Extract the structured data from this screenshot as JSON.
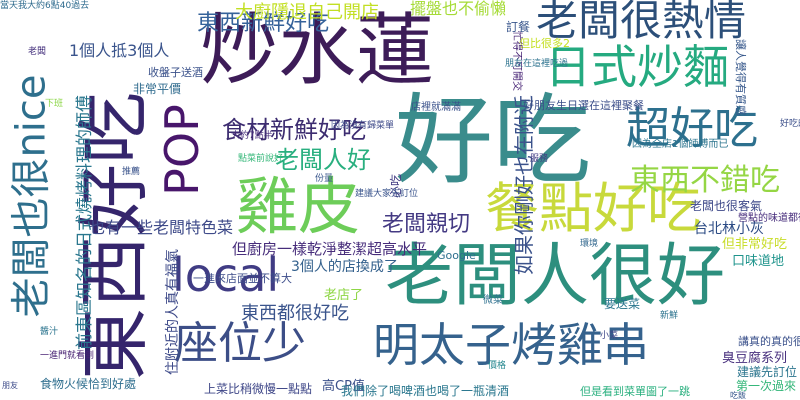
{
  "words": [
    {
      "text": "好吃",
      "color": "#3a8c8c",
      "weight": "large"
    },
    {
      "text": "炒水蓮",
      "color": "#3d1c58",
      "weight": "large"
    },
    {
      "text": "老闆人很好",
      "color": "#2d8f7e",
      "weight": "large"
    },
    {
      "text": "東西好吃",
      "color": "#35256c",
      "weight": "large"
    },
    {
      "text": "雞皮",
      "color": "#6dcd59",
      "weight": "large"
    },
    {
      "text": "餐點好吃",
      "color": "#c8d93b",
      "weight": "large"
    },
    {
      "text": "老闆很熱情",
      "color": "#2c4f79",
      "weight": "large"
    },
    {
      "text": "日式炒麵",
      "color": "#25aa80",
      "weight": "large"
    },
    {
      "text": "明太子烤雞串",
      "color": "#35628d",
      "weight": "large"
    },
    {
      "text": "座位少",
      "color": "#3c4e87",
      "weight": "large"
    },
    {
      "text": "老闆也很nice",
      "color": "#2e6f8d",
      "weight": "large"
    },
    {
      "text": "local",
      "color": "#403c84",
      "weight": "large"
    },
    {
      "text": "POP",
      "color": "#48166b",
      "weight": "large"
    },
    {
      "text": "超好吃",
      "color": "#2d708e",
      "weight": "large"
    },
    {
      "text": "食材新鮮好吃",
      "color": "#3c2c70",
      "weight": "medium"
    },
    {
      "text": "東西新鮮好吃",
      "color": "#35629a",
      "weight": "medium"
    },
    {
      "text": "東西不錯吃",
      "color": "#95d644",
      "weight": "medium"
    },
    {
      "text": "老闆人好",
      "color": "#29af7f",
      "weight": "medium"
    },
    {
      "text": "大廚隱退自己開店",
      "color": "#c2df23",
      "weight": "medium"
    },
    {
      "text": "東西都很好吃",
      "color": "#3a548c",
      "weight": "medium"
    },
    {
      "text": "老闆親切",
      "color": "#443a83",
      "weight": "medium"
    },
    {
      "text": "如果你剛好也在附近",
      "color": "#3b528b",
      "weight": "medium"
    },
    {
      "text": "1個人抵3個人",
      "color": "#3a548c",
      "weight": "small"
    },
    {
      "text": "擺盤也不偷懶",
      "color": "#a5db36",
      "weight": "small"
    },
    {
      "text": "前東區知名的日式燒烤料理的師傅",
      "color": "#2a778e",
      "weight": "small"
    },
    {
      "text": "也有一些老闆特色菜",
      "color": "#3e4a89",
      "weight": "small"
    },
    {
      "text": "但廚房一樣乾淨整潔超高水平",
      "color": "#472d7b",
      "weight": "small"
    },
    {
      "text": "3個人的店換成了",
      "color": "#34618d",
      "weight": "small"
    },
    {
      "text": "台北林小灰",
      "color": "#2d4c85",
      "weight": "small"
    },
    {
      "text": "但非常好吃",
      "color": "#c8dd2b",
      "weight": "small"
    },
    {
      "text": "口味道地",
      "color": "#1f948c",
      "weight": "small"
    },
    {
      "text": "老店了",
      "color": "#8ed645",
      "weight": "small"
    },
    {
      "text": "高CP值",
      "color": "#3b508a",
      "weight": "small"
    },
    {
      "text": "臭豆腐系列",
      "color": "#472f7d",
      "weight": "small"
    },
    {
      "text": "建議先訂位",
      "color": "#2b758e",
      "weight": "small"
    },
    {
      "text": "第一次過來",
      "color": "#34b679",
      "weight": "small"
    },
    {
      "text": "住附近的人真有福氣",
      "color": "#3e4a89",
      "weight": "small"
    },
    {
      "text": "食物火候恰到好處",
      "color": "#2e6e8e",
      "weight": "small"
    },
    {
      "text": "上菜比稍微慢一點點",
      "color": "#3f4788",
      "weight": "small"
    },
    {
      "text": "但是看到菜單圖了一跳",
      "color": "#2ab07f",
      "weight": "small"
    },
    {
      "text": "要送菜",
      "color": "#2a768e",
      "weight": "small"
    },
    {
      "text": "老闆也很客氣",
      "color": "#3e4989",
      "weight": "small"
    },
    {
      "text": "營點的味道都很好",
      "color": "#462c7b",
      "weight": "small"
    },
    {
      "text": "因為全店1個師傅而已",
      "color": "#2b748e",
      "weight": "small"
    },
    {
      "text": "好朋友生日選在這裡聚餐",
      "color": "#3c4f8a",
      "weight": "small"
    },
    {
      "text": "非常平價",
      "color": "#2f6b8e",
      "weight": "small"
    },
    {
      "text": "收盤子送酒",
      "color": "#3b528b",
      "weight": "small"
    },
    {
      "text": "但比很多2",
      "color": "#c4e021",
      "weight": "small"
    },
    {
      "text": "讓人覺得有質感",
      "color": "#38598c",
      "weight": "small"
    },
    {
      "text": "訂餐",
      "color": "#39568c",
      "weight": "small"
    },
    {
      "text": "一進來店面並不算大",
      "color": "#3d4d8a",
      "weight": "small"
    },
    {
      "text": "必吃",
      "color": "#433d84",
      "weight": "small"
    },
    {
      "text": "Google",
      "color": "#2e6f8e",
      "weight": "small"
    },
    {
      "text": "微菜",
      "color": "#2d708e",
      "weight": "small"
    },
    {
      "text": "講真的真的很忙",
      "color": "#3b518b",
      "weight": "small"
    },
    {
      "text": "我們除了喝啤酒也喝了一瓶清酒",
      "color": "#2a778e",
      "weight": "small"
    },
    {
      "text": "忙得不可開交",
      "color": "#482576",
      "weight": "tiny"
    },
    {
      "text": "店裡就滿滿",
      "color": "#3b528b",
      "weight": "tiny"
    },
    {
      "text": "大約7點半",
      "color": "#472c7a",
      "weight": "tiny"
    },
    {
      "text": "當天我大約6點40過去",
      "color": "#2f6b8e",
      "weight": "tiny"
    },
    {
      "text": "點菜前說好",
      "color": "#35b779",
      "weight": "tiny"
    },
    {
      "text": "因為沒有歸菜單",
      "color": "#3e4a89",
      "weight": "tiny"
    },
    {
      "text": "建議大家先訂位",
      "color": "#3a548c",
      "weight": "tiny"
    },
    {
      "text": "朋友在這裡吃過",
      "color": "#2c728e",
      "weight": "tiny"
    },
    {
      "text": "一進門就看到",
      "color": "#482173",
      "weight": "tiny"
    },
    {
      "text": "老闆",
      "color": "#46327e",
      "weight": "tiny"
    },
    {
      "text": "醬汁",
      "color": "#2b748e",
      "weight": "tiny"
    },
    {
      "text": "推薦",
      "color": "#3a538b",
      "weight": "tiny"
    },
    {
      "text": "小菜",
      "color": "#3f4889",
      "weight": "tiny"
    },
    {
      "text": "價格",
      "color": "#24878e",
      "weight": "tiny"
    },
    {
      "text": "服務",
      "color": "#433e85",
      "weight": "tiny"
    },
    {
      "text": "環境",
      "color": "#31678e",
      "weight": "tiny"
    },
    {
      "text": "份量",
      "color": "#39568c",
      "weight": "tiny"
    },
    {
      "text": "新鮮",
      "color": "#2c738e",
      "weight": "tiny"
    },
    {
      "text": "好吃的",
      "color": "#3c4f8a",
      "weight": "tiny"
    },
    {
      "text": "下班",
      "color": "#8bd646",
      "weight": "tiny"
    },
    {
      "text": "吃飯",
      "color": "#38598c",
      "weight": "tiny"
    },
    {
      "text": "朋友",
      "color": "#3e4c8a",
      "weight": "tiny"
    }
  ]
}
